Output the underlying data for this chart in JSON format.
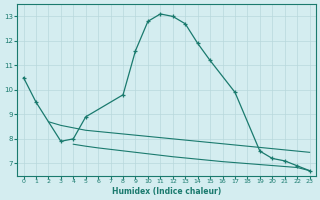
{
  "xlabel": "Humidex (Indice chaleur)",
  "bg_color": "#d4edf0",
  "line_color": "#1a7a6e",
  "grid_color": "#b8d8dc",
  "ylim": [
    6.5,
    13.5
  ],
  "yticks": [
    7,
    8,
    9,
    10,
    11,
    12,
    13
  ],
  "xlim": [
    -0.5,
    23.5
  ],
  "main_x": [
    0,
    1,
    3,
    4,
    5,
    8,
    9,
    10,
    11,
    12,
    13,
    14,
    15,
    17,
    19,
    20,
    21,
    22,
    23
  ],
  "main_y": [
    10.5,
    9.5,
    7.9,
    8.0,
    8.9,
    9.8,
    11.6,
    12.8,
    13.1,
    13.0,
    12.7,
    11.9,
    11.2,
    9.9,
    7.5,
    7.2,
    7.1,
    6.9,
    6.7
  ],
  "upper_x": [
    2,
    3,
    4,
    5,
    6,
    7,
    8,
    9,
    10,
    11,
    12,
    13,
    14,
    15,
    16,
    17,
    18,
    19,
    20,
    21,
    22,
    23
  ],
  "upper_y": [
    8.7,
    8.55,
    8.45,
    8.35,
    8.3,
    8.25,
    8.2,
    8.15,
    8.1,
    8.05,
    8.0,
    7.95,
    7.9,
    7.85,
    7.8,
    7.75,
    7.7,
    7.65,
    7.6,
    7.55,
    7.5,
    7.45
  ],
  "lower_x": [
    4,
    5,
    6,
    7,
    8,
    9,
    10,
    11,
    12,
    13,
    14,
    15,
    16,
    17,
    18,
    19,
    20,
    21,
    22,
    23
  ],
  "lower_y": [
    7.78,
    7.7,
    7.63,
    7.57,
    7.51,
    7.45,
    7.39,
    7.33,
    7.27,
    7.22,
    7.17,
    7.12,
    7.07,
    7.03,
    6.99,
    6.95,
    6.91,
    6.87,
    6.83,
    6.7
  ]
}
